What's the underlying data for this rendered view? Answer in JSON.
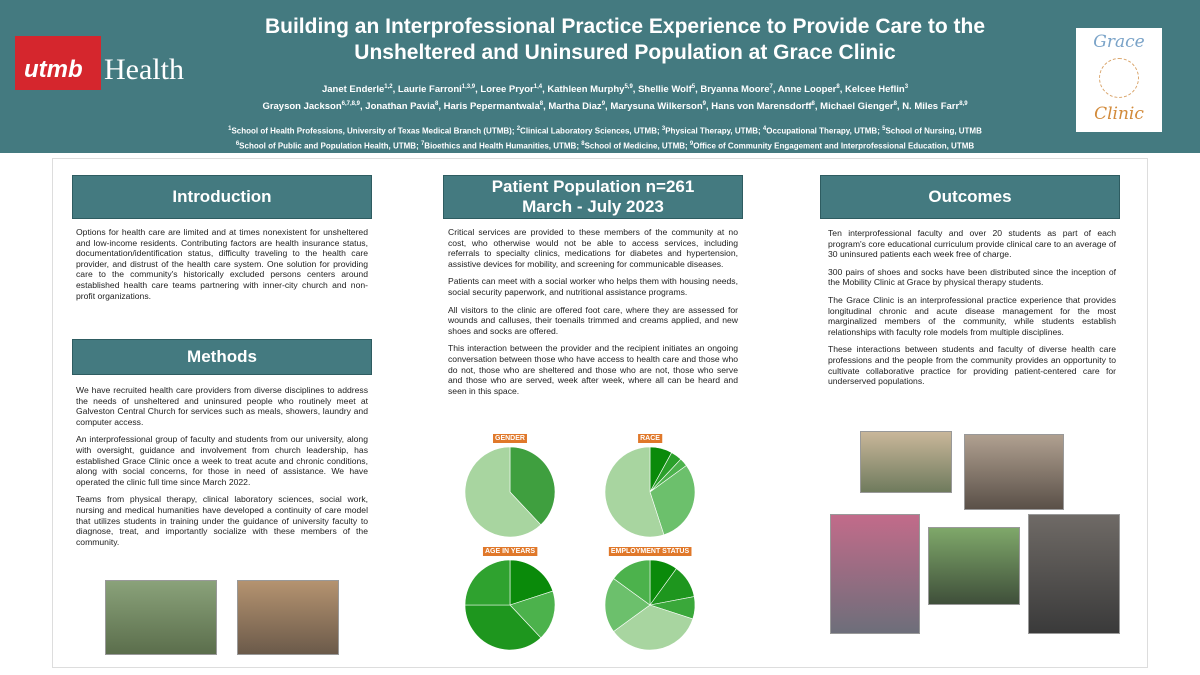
{
  "header": {
    "title_lines": [
      "Building an Interprofessional Practice Experience to Provide Care to the",
      "Unsheltered and Uninsured Population at Grace Clinic"
    ],
    "logo_left": {
      "mark": "utmb",
      "word": "Health"
    },
    "logo_right": {
      "top": "Grace",
      "bottom": "Clinic"
    },
    "author_lines": [
      [
        {
          "name": "Janet Enderle",
          "sup": "1,2"
        },
        {
          "name": "Laurie Farroni",
          "sup": "1,3,9"
        },
        {
          "name": "Loree Pryor",
          "sup": "1,4"
        },
        {
          "name": "Kathleen Murphy",
          "sup": "5,9"
        },
        {
          "name": "Shellie Wolf",
          "sup": "5"
        },
        {
          "name": "Bryanna Moore",
          "sup": "7"
        },
        {
          "name": "Anne Looper",
          "sup": "8"
        },
        {
          "name": "Kelcee Heflin",
          "sup": "3"
        }
      ],
      [
        {
          "name": "Grayson Jackson",
          "sup": "6,7,8,9"
        },
        {
          "name": "Jonathan Pavia",
          "sup": "8"
        },
        {
          "name": "Haris Pepermantwala",
          "sup": "8"
        },
        {
          "name": "Martha Diaz",
          "sup": "9"
        },
        {
          "name": "Marysuna Wilkerson",
          "sup": "9"
        },
        {
          "name": "Hans von Marensdorff",
          "sup": "8"
        },
        {
          "name": "Michael Gienger",
          "sup": "8"
        },
        {
          "name": "N. Miles Farr",
          "sup": "8,9"
        }
      ]
    ],
    "affiliation_lines": [
      [
        {
          "sup": "1",
          "text": "School of Health Professions, University of Texas Medical Branch (UTMB)"
        },
        {
          "sup": "2",
          "text": "Clinical Laboratory Sciences, UTMB"
        },
        {
          "sup": "3",
          "text": "Physical Therapy, UTMB"
        },
        {
          "sup": "4",
          "text": "Occupational Therapy, UTMB"
        },
        {
          "sup": "5",
          "text": "School of Nursing, UTMB"
        }
      ],
      [
        {
          "sup": "6",
          "text": "School of Public and Population Health, UTMB"
        },
        {
          "sup": "7",
          "text": "Bioethics and Health Humanities, UTMB"
        },
        {
          "sup": "8",
          "text": "School of Medicine, UTMB"
        },
        {
          "sup": "9",
          "text": "Office of Community Engagement and Interprofessional Education, UTMB"
        }
      ]
    ]
  },
  "introduction": {
    "heading": "Introduction",
    "paragraphs": [
      "Options for health care are limited and at times nonexistent for unsheltered and low-income residents. Contributing factors are health insurance status, documentation/identification status, difficulty traveling to the health care provider, and distrust of the health care system. One solution for providing care to the community's historically excluded persons centers around established health care teams partnering with inner-city church and non-profit organizations."
    ]
  },
  "methods": {
    "heading": "Methods",
    "paragraphs": [
      "We have recruited health care providers from diverse disciplines to address the needs of unsheltered and uninsured people who routinely meet at Galveston Central Church for services such as meals, showers, laundry and computer access.",
      "An interprofessional group of faculty and students from our university, along with oversight, guidance and involvement from church leadership, has established Grace Clinic once a week to treat acute and chronic conditions, along with social concerns, for those in need of assistance. We have operated the clinic full time since March 2022.",
      "Teams from physical therapy, clinical laboratory sciences, social work, nursing and medical humanities have developed a continuity of care model that utilizes students in training under the guidance of university faculty to diagnose, treat, and importantly socialize with these members of the community."
    ]
  },
  "population": {
    "heading_lines": [
      "Patient Population n=261",
      "March - July 2023"
    ],
    "paragraphs": [
      "Critical services are provided to these members of the community at no cost, who otherwise would not be able to access services, including referrals to specialty clinics, medications for diabetes and hypertension, assistive devices for mobility, and screening for communicable diseases.",
      "Patients can meet with a social worker who helps them with housing needs, social security paperwork, and nutritional assistance programs.",
      "All visitors to the clinic are offered foot care, where they are assessed for wounds and calluses, their toenails trimmed and creams applied, and new shoes and socks are offered.",
      "This interaction between the provider and the recipient initiates an ongoing conversation between those who have access to health care and those who do not, those who are sheltered and those who are not, those who serve and those who are served, week after week, where all can be heard and seen in this space."
    ],
    "pies": [
      {
        "title": "GENDER",
        "values": [
          38,
          62
        ],
        "colors": [
          "#3f9f3f",
          "#a8d5a0"
        ]
      },
      {
        "title": "RACE",
        "values": [
          8,
          4,
          3,
          30,
          55
        ],
        "colors": [
          "#0a8a0a",
          "#2aa02a",
          "#4cb24c",
          "#6cc06c",
          "#a8d5a0"
        ]
      },
      {
        "title": "AGE IN YEARS",
        "values": [
          20,
          18,
          37,
          25
        ],
        "colors": [
          "#0a8a0a",
          "#4cb24c",
          "#1e961e",
          "#2fa22f"
        ]
      },
      {
        "title": "EMPLOYMENT STATUS",
        "values": [
          10,
          12,
          8,
          35,
          20,
          15
        ],
        "colors": [
          "#0a8a0a",
          "#1e961e",
          "#3aa83a",
          "#a8d5a0",
          "#6cc06c",
          "#4cb24c"
        ]
      }
    ]
  },
  "outcomes": {
    "heading": "Outcomes",
    "paragraphs": [
      "Ten interprofessional faculty and over 20 students as part of each program's core educational curriculum provide clinical care to an average of 30 uninsured patients each week free of charge.",
      "300 pairs of shoes and socks have been distributed since the inception of the Mobility Clinic at Grace by physical therapy students.",
      "The Grace Clinic is an interprofessional practice experience that provides longitudinal chronic and acute disease management for the most marginalized members of the community, while students establish relationships with faculty role models from multiple disciplines.",
      "These interactions between students and faculty of diverse health care professions and the people from the community provides an opportunity to cultivate collaborative practice for providing patient-centered care for underserved populations."
    ]
  }
}
